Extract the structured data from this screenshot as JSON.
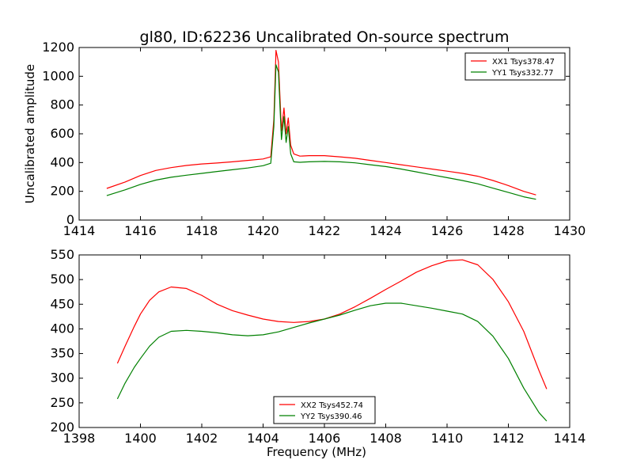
{
  "title": "gl80, ID:62236 Uncalibrated On-source spectrum",
  "chart_data": [
    {
      "type": "line",
      "xlabel": "",
      "ylabel": "Uncalibrated amplitude",
      "xlim": [
        1414,
        1430
      ],
      "ylim": [
        0,
        1200
      ],
      "xticks": [
        "1414",
        "1416",
        "1418",
        "1420",
        "1422",
        "1424",
        "1426",
        "1428",
        "1430"
      ],
      "yticks": [
        "0",
        "200",
        "400",
        "600",
        "800",
        "1000",
        "1200"
      ],
      "grid": false,
      "legend_position": "top-right",
      "series": [
        {
          "name": "XX1 Tsys378.47",
          "color": "#ff0000",
          "x": [
            1414.9,
            1415.5,
            1416.0,
            1416.5,
            1417.0,
            1417.5,
            1418.0,
            1418.5,
            1419.0,
            1419.5,
            1420.0,
            1420.25,
            1420.35,
            1420.42,
            1420.5,
            1420.6,
            1420.68,
            1420.75,
            1420.82,
            1420.9,
            1421.0,
            1421.2,
            1421.5,
            1422.0,
            1422.5,
            1423.0,
            1423.5,
            1424.0,
            1424.5,
            1425.0,
            1425.5,
            1426.0,
            1426.5,
            1427.0,
            1427.5,
            1428.0,
            1428.5,
            1428.9
          ],
          "y": [
            220,
            265,
            310,
            345,
            365,
            380,
            390,
            397,
            405,
            415,
            425,
            440,
            700,
            1180,
            1100,
            620,
            780,
            600,
            710,
            520,
            460,
            445,
            448,
            448,
            440,
            430,
            415,
            400,
            385,
            370,
            355,
            340,
            325,
            305,
            275,
            240,
            200,
            175
          ]
        },
        {
          "name": "YY1 Tsys332.77",
          "color": "#008000",
          "x": [
            1414.9,
            1415.5,
            1416.0,
            1416.5,
            1417.0,
            1417.5,
            1418.0,
            1418.5,
            1419.0,
            1419.5,
            1420.0,
            1420.25,
            1420.35,
            1420.42,
            1420.5,
            1420.6,
            1420.68,
            1420.75,
            1420.82,
            1420.9,
            1421.0,
            1421.2,
            1421.5,
            1422.0,
            1422.5,
            1423.0,
            1423.5,
            1424.0,
            1424.5,
            1425.0,
            1425.5,
            1426.0,
            1426.5,
            1427.0,
            1427.5,
            1428.0,
            1428.5,
            1428.9
          ],
          "y": [
            170,
            210,
            248,
            278,
            298,
            312,
            325,
            338,
            350,
            362,
            378,
            395,
            650,
            1080,
            1030,
            560,
            720,
            540,
            650,
            460,
            405,
            402,
            405,
            408,
            405,
            398,
            385,
            372,
            355,
            335,
            315,
            295,
            275,
            252,
            222,
            192,
            162,
            145
          ]
        }
      ]
    },
    {
      "type": "line",
      "xlabel": "Frequency (MHz)",
      "ylabel": "",
      "xlim": [
        1398,
        1414
      ],
      "ylim": [
        200,
        550
      ],
      "xticks": [
        "1398",
        "1400",
        "1402",
        "1404",
        "1406",
        "1408",
        "1410",
        "1412",
        "1414"
      ],
      "yticks": [
        "200",
        "250",
        "300",
        "350",
        "400",
        "450",
        "500",
        "550"
      ],
      "grid": false,
      "legend_position": "bottom-center",
      "series": [
        {
          "name": "XX2 Tsys452.74",
          "color": "#ff0000",
          "x": [
            1399.25,
            1399.5,
            1399.8,
            1400.0,
            1400.3,
            1400.6,
            1401.0,
            1401.5,
            1402.0,
            1402.5,
            1403.0,
            1403.5,
            1404.0,
            1404.5,
            1405.0,
            1405.5,
            1406.0,
            1406.5,
            1407.0,
            1407.5,
            1408.0,
            1408.5,
            1409.0,
            1409.5,
            1410.0,
            1410.5,
            1411.0,
            1411.5,
            1412.0,
            1412.5,
            1413.0,
            1413.25
          ],
          "y": [
            330,
            365,
            405,
            430,
            458,
            475,
            485,
            482,
            468,
            450,
            437,
            428,
            420,
            415,
            413,
            415,
            420,
            430,
            445,
            462,
            480,
            497,
            515,
            528,
            538,
            540,
            530,
            500,
            455,
            395,
            315,
            278
          ]
        },
        {
          "name": "YY2 Tsys390.46",
          "color": "#008000",
          "x": [
            1399.25,
            1399.5,
            1399.8,
            1400.0,
            1400.3,
            1400.6,
            1401.0,
            1401.5,
            1402.0,
            1402.5,
            1403.0,
            1403.5,
            1404.0,
            1404.5,
            1405.0,
            1405.5,
            1406.0,
            1406.5,
            1407.0,
            1407.5,
            1408.0,
            1408.5,
            1409.0,
            1409.5,
            1410.0,
            1410.5,
            1411.0,
            1411.5,
            1412.0,
            1412.5,
            1413.0,
            1413.25
          ],
          "y": [
            258,
            290,
            322,
            340,
            365,
            383,
            395,
            397,
            395,
            392,
            388,
            386,
            388,
            394,
            403,
            412,
            420,
            428,
            438,
            447,
            452,
            452,
            447,
            442,
            436,
            430,
            415,
            385,
            340,
            280,
            230,
            213
          ]
        }
      ]
    }
  ]
}
